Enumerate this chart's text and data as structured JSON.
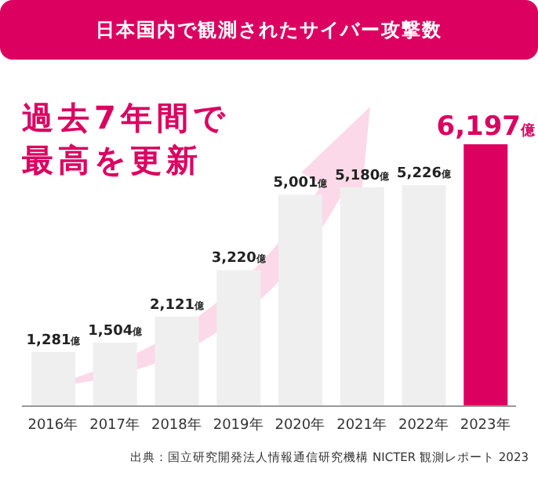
{
  "chart_data": {
    "type": "bar",
    "title": "日本国内で観測されたサイバー攻撃数",
    "categories": [
      "2016年",
      "2017年",
      "2018年",
      "2019年",
      "2020年",
      "2021年",
      "2022年",
      "2023年"
    ],
    "values": [
      1281,
      1504,
      2121,
      3220,
      5001,
      5180,
      5226,
      6197
    ],
    "colors": [
      "#efefef",
      "#efefef",
      "#efefef",
      "#efefef",
      "#efefef",
      "#efefef",
      "#efefef",
      "#dc0060"
    ],
    "value_labels": [
      "1,281億",
      "1,504億",
      "2,121億",
      "3,220億",
      "5,001億",
      "5,180億",
      "5,226億",
      "6,197億"
    ],
    "annotations": [
      "過去7年間で最高を更新",
      "出典：国立研究開発法人情報通信研究機構 NICTER 観測レポート 2023"
    ],
    "grid": false,
    "legend": false
  }
}
